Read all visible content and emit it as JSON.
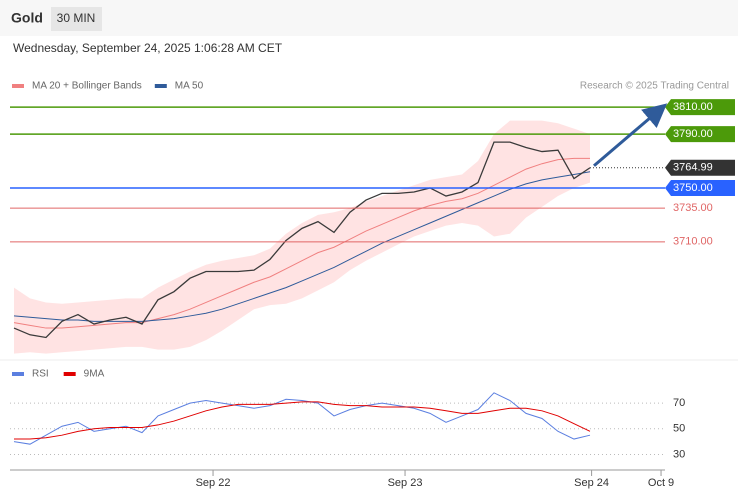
{
  "header": {
    "title": "Gold",
    "interval": "30 MIN",
    "date": "Wednesday, September 24, 2025 1:06:28 AM CET",
    "credit": "Research © 2025 Trading Central"
  },
  "chart_data": [
    {
      "type": "line",
      "x": [
        0,
        1,
        2,
        3,
        4,
        5,
        6,
        7,
        8,
        9,
        10,
        11,
        12,
        13,
        14,
        15,
        16,
        17,
        18,
        19,
        20,
        21,
        22,
        23,
        24,
        25,
        26,
        27,
        28,
        29,
        30,
        31,
        32,
        33,
        34,
        35,
        36
      ],
      "xlim": [
        0,
        41
      ],
      "ylim": [
        3626,
        3819
      ],
      "close": {
        "color": "#3a3a3a",
        "values": [
          3646,
          3641,
          3639,
          3651,
          3656,
          3649,
          3652,
          3654,
          3649,
          3667,
          3673,
          3683,
          3688,
          3688,
          3688,
          3689,
          3697,
          3711,
          3720,
          3725,
          3717,
          3732,
          3741,
          3746,
          3746,
          3747,
          3750,
          3744,
          3747,
          3754,
          3784,
          3784,
          3780,
          3777,
          3778,
          3757,
          3765
        ]
      },
      "series": [
        {
          "name": "MA 20 + Bollinger Bands",
          "color": "#f08080",
          "band_color": "#ffd0d0",
          "values": [
            3650,
            3648,
            3646,
            3646,
            3647,
            3648,
            3649,
            3650,
            3650,
            3653,
            3656,
            3660,
            3665,
            3670,
            3675,
            3680,
            3684,
            3690,
            3696,
            3702,
            3706,
            3712,
            3718,
            3723,
            3728,
            3733,
            3737,
            3740,
            3742,
            3746,
            3752,
            3758,
            3764,
            3768,
            3771,
            3772,
            3772
          ],
          "upper": [
            3676,
            3668,
            3665,
            3664,
            3665,
            3666,
            3667,
            3668,
            3668,
            3676,
            3682,
            3688,
            3693,
            3696,
            3698,
            3700,
            3705,
            3716,
            3724,
            3730,
            3732,
            3735,
            3740,
            3744,
            3748,
            3752,
            3756,
            3758,
            3760,
            3770,
            3790,
            3800,
            3800,
            3800,
            3798,
            3794,
            3790
          ],
          "lower": [
            3627,
            3628,
            3627,
            3628,
            3629,
            3630,
            3631,
            3632,
            3632,
            3630,
            3630,
            3632,
            3637,
            3644,
            3652,
            3660,
            3663,
            3664,
            3668,
            3674,
            3680,
            3689,
            3696,
            3702,
            3708,
            3714,
            3718,
            3722,
            3724,
            3722,
            3714,
            3716,
            3728,
            3736,
            3744,
            3750,
            3754
          ]
        },
        {
          "name": "MA 50",
          "color": "#2f5b9a",
          "values": [
            3655,
            3654,
            3653,
            3652,
            3652,
            3651,
            3651,
            3651,
            3651,
            3652,
            3653,
            3655,
            3657,
            3660,
            3664,
            3668,
            3672,
            3676,
            3681,
            3686,
            3691,
            3697,
            3703,
            3709,
            3714,
            3719,
            3724,
            3729,
            3734,
            3739,
            3744,
            3749,
            3753,
            3756,
            3758,
            3760,
            3762
          ]
        }
      ],
      "levels": [
        {
          "value": 3810,
          "label": "3810.00",
          "color": "#4c9a0a",
          "boxed": true
        },
        {
          "value": 3790,
          "label": "3790.00",
          "color": "#4c9a0a",
          "boxed": true
        },
        {
          "value": 3764.99,
          "label": "3764.99",
          "color": "#333333",
          "boxed": true,
          "dotted": true
        },
        {
          "value": 3750,
          "label": "3750.00",
          "color": "#2962ff",
          "boxed": true
        },
        {
          "value": 3735,
          "label": "3735.00",
          "color": "#e06666",
          "boxed": false
        },
        {
          "value": 3710,
          "label": "3710.00",
          "color": "#e06666",
          "boxed": false
        }
      ],
      "arrow_color": "#2f5b9a"
    },
    {
      "type": "line",
      "x": [
        0,
        1,
        2,
        3,
        4,
        5,
        6,
        7,
        8,
        9,
        10,
        11,
        12,
        13,
        14,
        15,
        16,
        17,
        18,
        19,
        20,
        21,
        22,
        23,
        24,
        25,
        26,
        27,
        28,
        29,
        30,
        31,
        32,
        33,
        34,
        35,
        36
      ],
      "xlim": [
        0,
        41
      ],
      "ylim": [
        21,
        88
      ],
      "yticks": [
        30,
        50,
        70
      ],
      "xticks": [
        {
          "value": 12.44,
          "label": "Sep 22"
        },
        {
          "value": 24.44,
          "label": "Sep 23"
        },
        {
          "value": 36.1,
          "label": "Sep 24"
        },
        {
          "value": 40.44,
          "label": "Oct 9"
        }
      ],
      "series": [
        {
          "name": "RSI",
          "color": "#5b7fe0",
          "values": [
            40,
            38,
            45,
            52,
            55,
            48,
            50,
            52,
            47,
            60,
            65,
            70,
            72,
            70,
            68,
            66,
            68,
            73,
            72,
            70,
            60,
            65,
            68,
            70,
            68,
            66,
            62,
            55,
            60,
            65,
            78,
            72,
            62,
            58,
            48,
            42,
            45
          ]
        },
        {
          "name": "9MA",
          "color": "#e00000",
          "values": [
            42,
            42,
            43,
            45,
            48,
            50,
            51,
            51,
            51,
            53,
            56,
            60,
            64,
            67,
            69,
            69,
            69,
            70,
            71,
            71,
            69,
            68,
            68,
            67,
            67,
            67,
            66,
            64,
            62,
            62,
            64,
            66,
            66,
            64,
            60,
            54,
            48
          ]
        }
      ]
    }
  ]
}
